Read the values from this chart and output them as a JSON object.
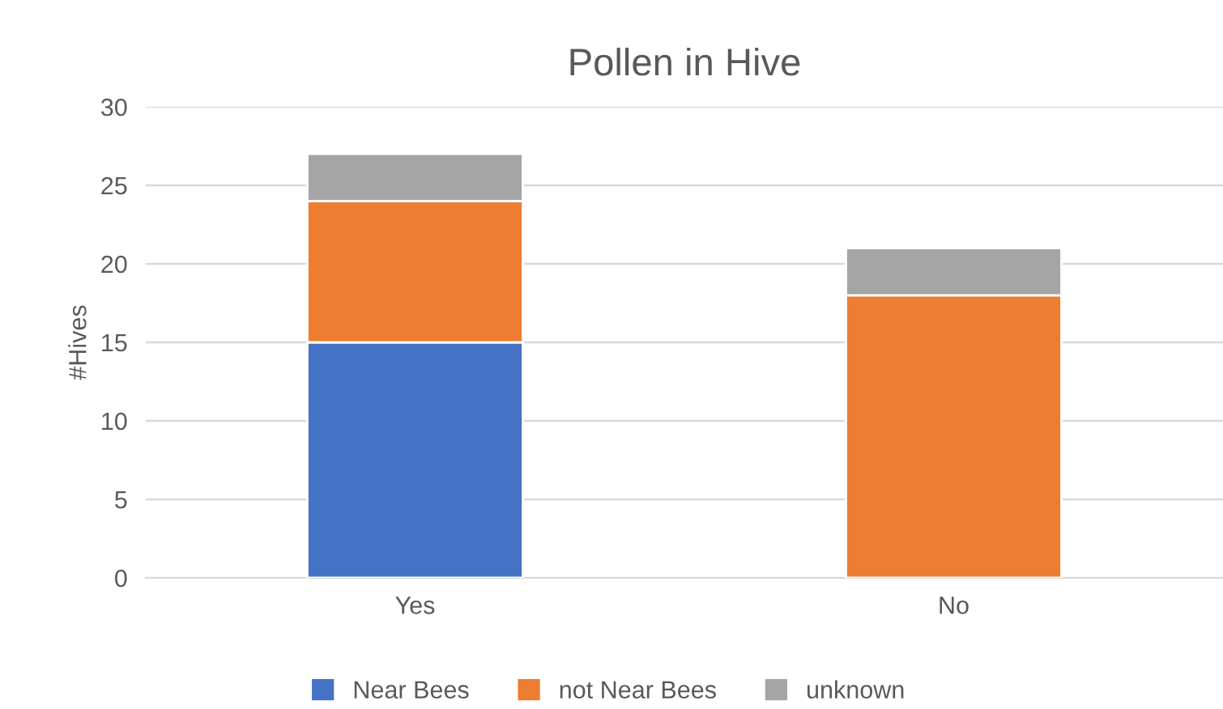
{
  "chart_data": {
    "type": "bar",
    "title": "Pollen in Hive",
    "ylabel": "#Hives",
    "categories": [
      "Yes",
      "No"
    ],
    "series": [
      {
        "name": "Near Bees",
        "color": "#4472c4",
        "values": [
          15,
          0
        ]
      },
      {
        "name": "not Near Bees",
        "color": "#ed7d31",
        "values": [
          9,
          18
        ]
      },
      {
        "name": "unknown",
        "color": "#a5a5a5",
        "values": [
          3,
          3
        ]
      }
    ],
    "stacked": true,
    "ylim": [
      0,
      30
    ],
    "yticks": [
      0,
      5,
      10,
      15,
      20,
      25,
      30
    ],
    "grid": "y",
    "legend": "bottom"
  }
}
